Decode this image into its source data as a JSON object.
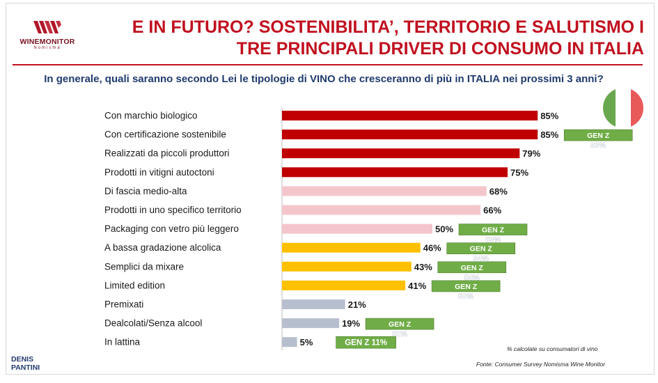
{
  "header": {
    "logo_name": "WINEMONITOR",
    "logo_sub": "Nomisma",
    "title_line1": "E IN FUTURO? SOSTENIBILITA’, TERRITORIO E SALUTISMO I",
    "title_line2": "TRE PRINCIPALI DRIVER DI CONSUMO IN ITALIA"
  },
  "question": "In generale, quali saranno secondo Lei le tipologie di VINO che cresceranno di più in ITALIA nei prossimi 3 anni?",
  "colors": {
    "dark_red": "#c00000",
    "pink": "#f4c6cc",
    "amber": "#ffc000",
    "gray": "#b7bfcf",
    "genz_green": "#70ad47",
    "title_red": "#c0101f",
    "navy": "#1f3b6e"
  },
  "chart_data": {
    "type": "bar",
    "orientation": "horizontal",
    "title": "In generale, quali saranno secondo Lei le tipologie di VINO che cresceranno di più in ITALIA nei prossimi 3 anni?",
    "xlabel": "",
    "ylabel": "",
    "xlim": [
      0,
      100
    ],
    "unit": "%",
    "categories": [
      "Con marchio biologico",
      "Con certificazione sostenibile",
      "Realizzati da piccoli produttori",
      "Prodotti in vitigni autoctoni",
      "Di fascia medio-alta",
      "Prodotti in uno specifico territorio",
      "Packaging con vetro più leggero",
      "A bassa gradazione alcolica",
      "Semplici da mixare",
      "Limited edition",
      "Premixati",
      "Dealcolati/Senza alcool",
      "In lattina"
    ],
    "values": [
      85,
      85,
      79,
      75,
      68,
      66,
      50,
      46,
      43,
      41,
      21,
      19,
      5
    ],
    "value_labels": [
      "85%",
      "85%",
      "79%",
      "75%",
      "68%",
      "66%",
      "50%",
      "46%",
      "43%",
      "41%",
      "21%",
      "19%",
      "5%"
    ],
    "bar_colors": [
      "dark_red",
      "dark_red",
      "dark_red",
      "dark_red",
      "pink",
      "pink",
      "pink",
      "amber",
      "amber",
      "amber",
      "gray",
      "gray",
      "gray"
    ],
    "gen_z": [
      {
        "category": "Con certificazione sostenibile",
        "label": "GEN Z",
        "value": "93%"
      },
      {
        "category": "Packaging con vetro più leggero",
        "label": "GEN Z",
        "value": "69%"
      },
      {
        "category": "A bassa gradazione alcolica",
        "label": "GEN Z",
        "value": "54%"
      },
      {
        "category": "Semplici da mixare",
        "label": "GEN Z",
        "value": "54%"
      },
      {
        "category": "Limited edition",
        "label": "GEN Z",
        "value": "50%"
      },
      {
        "category": "Dealcolati/Senza alcool",
        "label": "GEN Z",
        "value": "31%"
      },
      {
        "category": "In lattina",
        "label": "GEN Z",
        "value": "11%",
        "inline": true
      }
    ]
  },
  "footer": {
    "note": "% calcolate su consumatori di vino",
    "source": "Fonte: Consumer Survey Nomisma Wine Monitor",
    "author_line1": "DENIS",
    "author_line2": "PANTINI"
  }
}
